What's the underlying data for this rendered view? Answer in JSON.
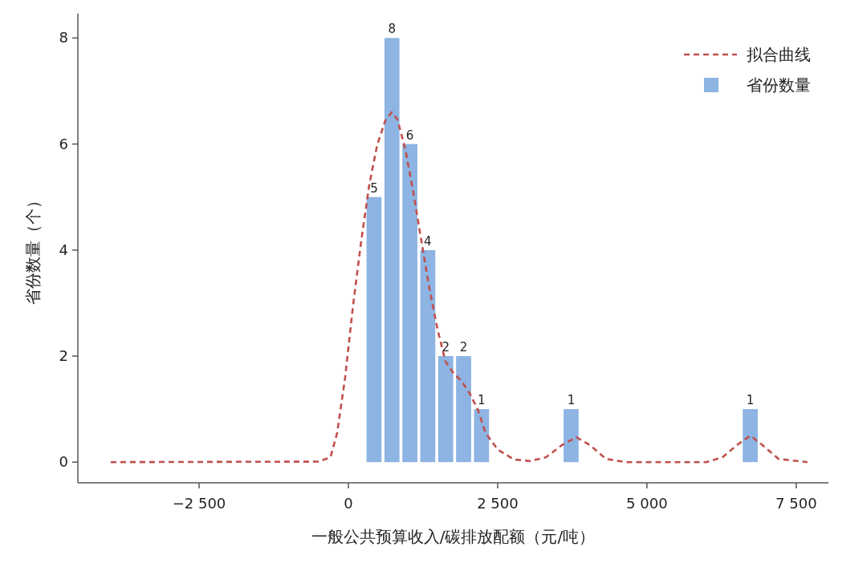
{
  "chart_data": {
    "type": "histogram",
    "xlabel": "一般公共预算收入/碳排放配额（元/吨）",
    "ylabel": "省份数量（个）",
    "xlim": [
      -4530,
      8040
    ],
    "ylim": [
      -0.39,
      8.46
    ],
    "xticks": [
      {
        "value": -2500,
        "label": "−2 500"
      },
      0,
      {
        "value": 2500,
        "label": "2 500"
      },
      {
        "value": 5000,
        "label": "5 000"
      },
      {
        "value": 7500,
        "label": "7 500"
      }
    ],
    "yticks": [
      0,
      2,
      4,
      6,
      8
    ],
    "bins": [
      280,
      580,
      880,
      1180,
      1480,
      1780,
      2080,
      2380,
      2680,
      2980,
      3280,
      3580,
      3880,
      4180,
      4480,
      4780,
      5080,
      5380,
      5680,
      5980,
      6280,
      6580,
      6880
    ],
    "legend": "top right",
    "grid": false,
    "series": [
      {
        "name": "拟合曲线",
        "type": "line",
        "color": "#c0504d",
        "line_style": "dashed",
        "x": [
          -3980,
          -500,
          -300,
          -188,
          -54,
          80,
          215,
          350,
          484,
          618,
          726,
          820,
          954,
          1089,
          1223,
          1358,
          1492,
          1626,
          1761,
          1895,
          2030,
          2164,
          2298,
          2500,
          2769,
          3038,
          3306,
          3575,
          3817,
          4046,
          4315,
          4651,
          5995,
          6263,
          6505,
          6734,
          6935,
          7204,
          7688
        ],
        "values": [
          0,
          0.01,
          0.09,
          0.55,
          1.6,
          2.97,
          4.17,
          5.23,
          5.99,
          6.44,
          6.6,
          6.47,
          5.9,
          5.08,
          4.17,
          3.27,
          2.51,
          1.9,
          1.68,
          1.53,
          1.3,
          1.0,
          0.55,
          0.24,
          0.05,
          0.02,
          0.09,
          0.32,
          0.47,
          0.32,
          0.06,
          0,
          0,
          0.09,
          0.32,
          0.5,
          0.32,
          0.06,
          0
        ]
      },
      {
        "name": "省份数量",
        "color": "#8db4e2",
        "values": [
          5,
          8,
          6,
          4,
          2,
          2,
          1,
          0,
          0,
          0,
          0,
          1,
          0,
          0,
          0,
          0,
          0,
          0,
          0,
          0,
          0,
          1
        ],
        "value_labels": [
          "5",
          "8",
          "6",
          "4",
          "2",
          "2",
          "1",
          null,
          null,
          null,
          null,
          "1",
          null,
          null,
          null,
          null,
          null,
          null,
          null,
          null,
          null,
          "1"
        ]
      }
    ]
  }
}
